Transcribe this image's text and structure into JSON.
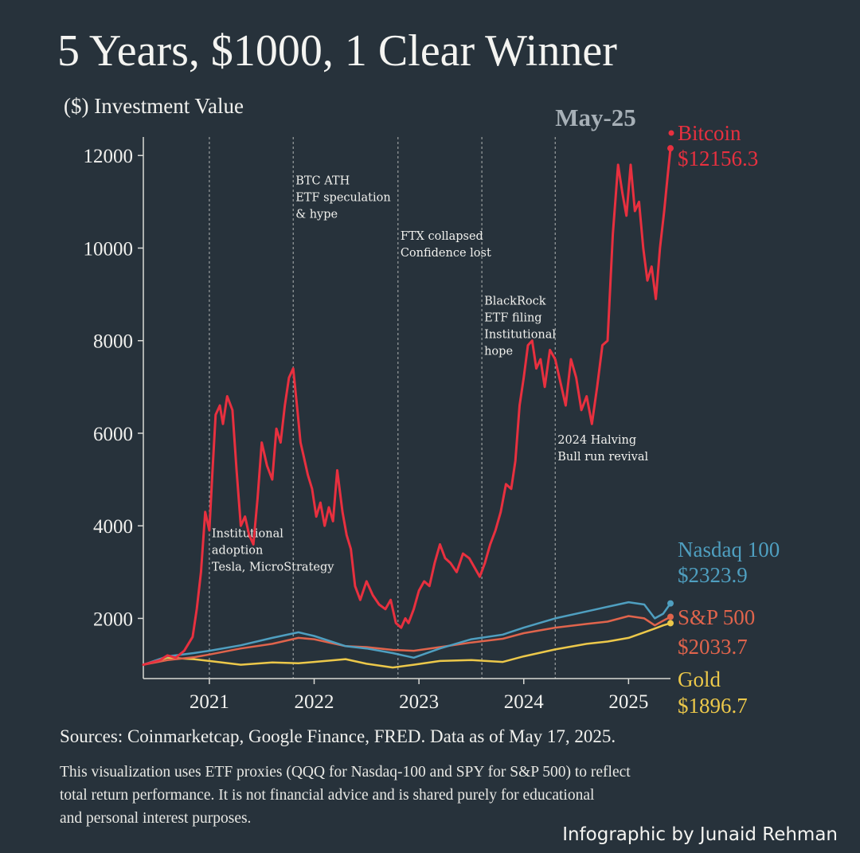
{
  "header": {
    "title": "5 Years, $1000, 1 Clear Winner"
  },
  "chart_data": {
    "type": "line",
    "title": "5 Years, $1000, 1 Clear Winner",
    "ylabel": "($) Investment Value",
    "xlabel": "",
    "ylim": [
      700,
      12400
    ],
    "xlim": [
      2020.37,
      2025.4
    ],
    "y_ticks": [
      2000,
      4000,
      6000,
      8000,
      10000,
      12000
    ],
    "x_ticks": [
      {
        "label": "2021",
        "x": 2021.0
      },
      {
        "label": "2022",
        "x": 2022.0
      },
      {
        "label": "2023",
        "x": 2023.0
      },
      {
        "label": "2024",
        "x": 2024.0
      },
      {
        "label": "2025",
        "x": 2025.0
      }
    ],
    "grid": false,
    "marker_label": "May-25",
    "series": [
      {
        "name": "Bitcoin",
        "end_label": "Bitcoin",
        "end_value": "$12156.3",
        "color": "#e8303f",
        "x": [
          2020.37,
          2020.45,
          2020.53,
          2020.6,
          2020.68,
          2020.76,
          2020.84,
          2020.88,
          2020.92,
          2020.96,
          2021.0,
          2021.03,
          2021.06,
          2021.1,
          2021.13,
          2021.17,
          2021.22,
          2021.26,
          2021.3,
          2021.34,
          2021.38,
          2021.42,
          2021.46,
          2021.5,
          2021.55,
          2021.6,
          2021.64,
          2021.68,
          2021.72,
          2021.76,
          2021.8,
          2021.84,
          2021.87,
          2021.9,
          2021.94,
          2021.98,
          2022.02,
          2022.06,
          2022.1,
          2022.14,
          2022.18,
          2022.22,
          2022.27,
          2022.31,
          2022.35,
          2022.39,
          2022.44,
          2022.5,
          2022.56,
          2022.62,
          2022.68,
          2022.73,
          2022.78,
          2022.83,
          2022.87,
          2022.9,
          2022.95,
          2023.0,
          2023.05,
          2023.1,
          2023.15,
          2023.2,
          2023.25,
          2023.3,
          2023.36,
          2023.42,
          2023.48,
          2023.53,
          2023.58,
          2023.63,
          2023.68,
          2023.73,
          2023.78,
          2023.83,
          2023.88,
          2023.92,
          2023.96,
          2024.0,
          2024.04,
          2024.08,
          2024.12,
          2024.16,
          2024.2,
          2024.25,
          2024.3,
          2024.35,
          2024.4,
          2024.45,
          2024.5,
          2024.55,
          2024.6,
          2024.65,
          2024.7,
          2024.75,
          2024.8,
          2024.85,
          2024.9,
          2024.94,
          2024.98,
          2025.02,
          2025.06,
          2025.1,
          2025.14,
          2025.18,
          2025.22,
          2025.26,
          2025.3,
          2025.34,
          2025.37,
          2025.4
        ],
        "y": [
          1000,
          1050,
          1100,
          1200,
          1150,
          1300,
          1600,
          2200,
          3000,
          4300,
          3900,
          5200,
          6400,
          6600,
          6200,
          6800,
          6500,
          5200,
          4000,
          4200,
          3800,
          3600,
          4600,
          5800,
          5300,
          5000,
          6100,
          5800,
          6600,
          7200,
          7400,
          6500,
          5800,
          5500,
          5100,
          4800,
          4200,
          4500,
          4000,
          4400,
          4100,
          5200,
          4300,
          3800,
          3500,
          2700,
          2400,
          2800,
          2500,
          2300,
          2200,
          2400,
          1900,
          1800,
          2000,
          1900,
          2200,
          2600,
          2800,
          2700,
          3200,
          3600,
          3300,
          3200,
          3000,
          3400,
          3300,
          3100,
          2900,
          3200,
          3600,
          3900,
          4300,
          4900,
          4800,
          5400,
          6600,
          7200,
          7900,
          8000,
          7400,
          7600,
          7000,
          7800,
          7600,
          7100,
          6600,
          7600,
          7200,
          6500,
          6800,
          6200,
          7000,
          7900,
          8000,
          10300,
          11800,
          11200,
          10700,
          11800,
          10800,
          11000,
          10000,
          9300,
          9600,
          8900,
          10000,
          10800,
          11500,
          12156.3
        ]
      },
      {
        "name": "Nasdaq 100",
        "end_label": "Nasdaq 100",
        "end_value": "$2323.9",
        "color": "#4f9fc0",
        "x": [
          2020.37,
          2020.6,
          2020.85,
          2021.0,
          2021.3,
          2021.6,
          2021.85,
          2022.0,
          2022.3,
          2022.5,
          2022.75,
          2022.95,
          2023.2,
          2023.5,
          2023.8,
          2024.0,
          2024.3,
          2024.6,
          2024.8,
          2025.0,
          2025.15,
          2025.25,
          2025.33,
          2025.4
        ],
        "y": [
          1000,
          1180,
          1250,
          1300,
          1420,
          1580,
          1700,
          1620,
          1400,
          1350,
          1250,
          1150,
          1350,
          1550,
          1650,
          1800,
          2000,
          2150,
          2250,
          2350,
          2300,
          2000,
          2100,
          2323.9
        ]
      },
      {
        "name": "S&P 500",
        "end_label": "S&P 500",
        "end_value": "$2033.7",
        "color": "#e0644c",
        "x": [
          2020.37,
          2020.6,
          2020.85,
          2021.0,
          2021.3,
          2021.6,
          2021.85,
          2022.0,
          2022.3,
          2022.5,
          2022.75,
          2022.95,
          2023.2,
          2023.5,
          2023.8,
          2024.0,
          2024.3,
          2024.6,
          2024.8,
          2025.0,
          2025.15,
          2025.25,
          2025.33,
          2025.4
        ],
        "y": [
          1000,
          1100,
          1160,
          1220,
          1350,
          1450,
          1580,
          1550,
          1400,
          1380,
          1320,
          1300,
          1380,
          1480,
          1560,
          1680,
          1800,
          1880,
          1930,
          2050,
          2000,
          1850,
          1950,
          2033.7
        ]
      },
      {
        "name": "Gold",
        "end_label": "Gold",
        "end_value": "$1896.7",
        "color": "#ecc84a",
        "x": [
          2020.37,
          2020.6,
          2020.85,
          2021.0,
          2021.3,
          2021.6,
          2021.85,
          2022.0,
          2022.3,
          2022.5,
          2022.75,
          2022.95,
          2023.2,
          2023.5,
          2023.8,
          2024.0,
          2024.3,
          2024.6,
          2024.8,
          2025.0,
          2025.15,
          2025.25,
          2025.33,
          2025.4
        ],
        "y": [
          1000,
          1150,
          1120,
          1080,
          1000,
          1050,
          1030,
          1060,
          1120,
          1020,
          940,
          1000,
          1080,
          1100,
          1060,
          1180,
          1330,
          1450,
          1500,
          1580,
          1700,
          1780,
          1850,
          1896.7
        ]
      }
    ],
    "events": [
      {
        "x": 2021.0,
        "lines": [
          "Institutional",
          "adoption",
          "Tesla, MicroStrategy"
        ],
        "label_y": 3750
      },
      {
        "x": 2021.8,
        "lines": [
          "BTC ATH",
          "ETF speculation",
          "& hype"
        ],
        "label_y": 11380
      },
      {
        "x": 2022.8,
        "lines": [
          "FTX collapsed",
          "Confidence lost"
        ],
        "label_y": 10180
      },
      {
        "x": 2023.6,
        "lines": [
          "BlackRock",
          "ETF filing",
          "Institutional",
          "hope"
        ],
        "label_y": 8780
      },
      {
        "x": 2024.3,
        "lines": [
          "2024 Halving",
          "Bull run revival"
        ],
        "label_y": 5780
      }
    ]
  },
  "footer": {
    "sources": "Sources: Coinmarketcap, Google Finance, FRED. Data as of May 17, 2025.",
    "disclaimer_lines": [
      "This visualization uses ETF proxies (QQQ for Nasdaq-100 and SPY for S&P 500) to reflect",
      "total return performance. It is not financial advice and is shared purely for educational",
      "and personal interest purposes."
    ],
    "credit": "Infographic by Junaid Rehman"
  },
  "colors": {
    "background": "#27323b",
    "axis": "#d9d9d5"
  }
}
